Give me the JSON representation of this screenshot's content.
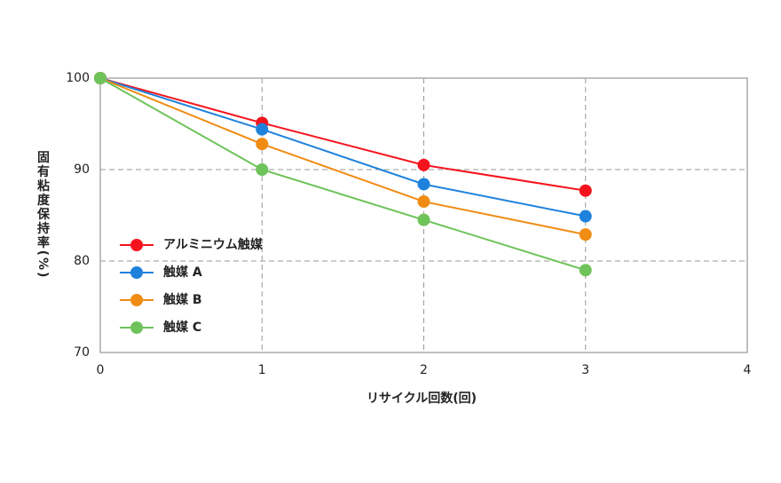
{
  "chart_data": {
    "type": "line",
    "title": null,
    "x_label": "リサイクル回数(回)",
    "y_label": "固有粘度保持率(%)",
    "x": [
      0,
      1,
      2,
      3
    ],
    "series": [
      {
        "name": "アルミニウム触媒",
        "color": "#f5141e",
        "values": [
          100,
          95.1,
          90.5,
          87.7
        ]
      },
      {
        "name": "触媒 A",
        "color": "#1e82dc",
        "values": [
          100,
          94.4,
          88.4,
          84.9
        ]
      },
      {
        "name": "触媒 B",
        "color": "#f08c14",
        "values": [
          100,
          92.8,
          86.5,
          82.9
        ]
      },
      {
        "name": "触媒 C",
        "color": "#6ec35a",
        "values": [
          100,
          90.0,
          84.5,
          79.0
        ]
      }
    ],
    "xlim": [
      0,
      4
    ],
    "xticks": [
      0,
      1,
      2,
      3,
      4
    ],
    "ylim": [
      70,
      100
    ],
    "yticks": [
      70,
      80,
      90,
      100
    ],
    "grid": true,
    "legend": "left"
  }
}
